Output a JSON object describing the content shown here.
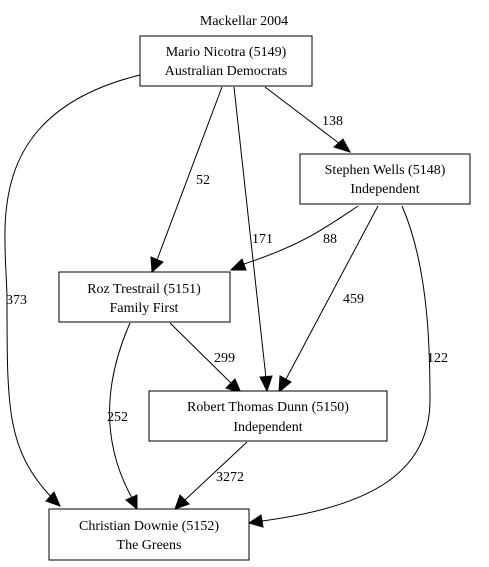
{
  "title": "Mackellar 2004",
  "nodes": {
    "nicotra": {
      "name": "Mario Nicotra (5149)",
      "party": "Australian Democrats"
    },
    "wells": {
      "name": "Stephen Wells (5148)",
      "party": "Independent"
    },
    "trestrail": {
      "name": "Roz Trestrail (5151)",
      "party": "Family First"
    },
    "dunn": {
      "name": "Robert Thomas Dunn (5150)",
      "party": "Independent"
    },
    "downie": {
      "name": "Christian Downie (5152)",
      "party": "The Greens"
    }
  },
  "edges": [
    {
      "id": "nicotra-wells",
      "from": "nicotra",
      "to": "wells",
      "label": "138"
    },
    {
      "id": "nicotra-trestrail",
      "from": "nicotra",
      "to": "trestrail",
      "label": "52"
    },
    {
      "id": "nicotra-dunn",
      "from": "nicotra",
      "to": "dunn",
      "label": "171"
    },
    {
      "id": "nicotra-downie",
      "from": "nicotra",
      "to": "downie",
      "label": "373"
    },
    {
      "id": "wells-trestrail",
      "from": "wells",
      "to": "trestrail",
      "label": "88"
    },
    {
      "id": "wells-dunn",
      "from": "wells",
      "to": "dunn",
      "label": "459"
    },
    {
      "id": "wells-downie",
      "from": "wells",
      "to": "downie",
      "label": "122"
    },
    {
      "id": "trestrail-dunn",
      "from": "trestrail",
      "to": "dunn",
      "label": "299"
    },
    {
      "id": "trestrail-downie",
      "from": "trestrail",
      "to": "downie",
      "label": "252"
    },
    {
      "id": "dunn-downie",
      "from": "dunn",
      "to": "downie",
      "label": "3272"
    }
  ]
}
